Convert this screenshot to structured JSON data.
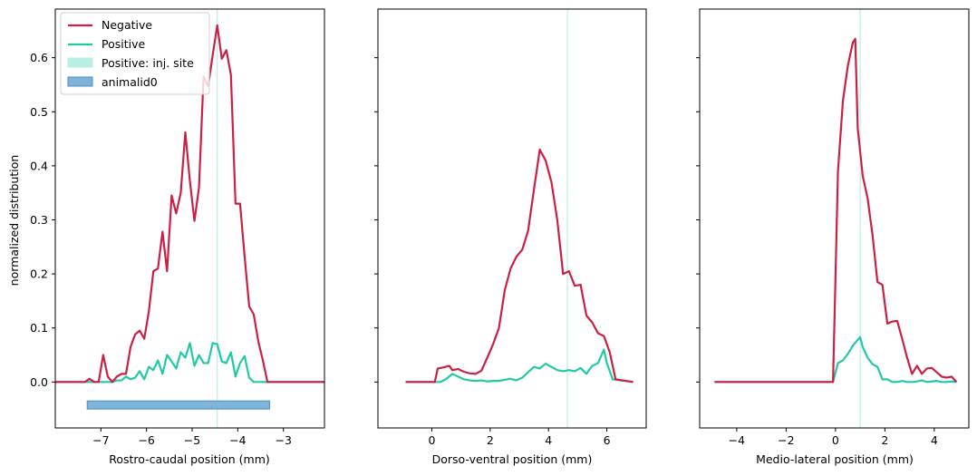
{
  "colors": {
    "negative": "#cc1f44",
    "positive": "#22c9a6",
    "inj_site_fill": "#b8efe2",
    "inj_site_line": "#b8efe2",
    "animal_fill": "#7fb3d7",
    "animal_edge": "#4d8fbf"
  },
  "legend": {
    "negative": "Negative",
    "positive": "Positive",
    "inj_site": "Positive: inj. site",
    "animal": "animalid0"
  },
  "chart_data": [
    {
      "type": "line",
      "xlabel": "Rostro-caudal position (mm)",
      "ylabel": "normalized distribution",
      "xlim": [
        -8.0,
        -2.1
      ],
      "ylim": [
        -0.085,
        0.69
      ],
      "xticks": [
        -7,
        -6,
        -5,
        -4,
        -3
      ],
      "yticks": [
        0.0,
        0.1,
        0.2,
        0.3,
        0.4,
        0.5,
        0.6
      ],
      "inj_site_x": -4.45,
      "animal_bar": {
        "x_start": -7.3,
        "x_end": -3.3,
        "y_low": -0.05,
        "y_high": -0.035
      },
      "series": [
        {
          "name": "Negative",
          "x": [
            -8.0,
            -7.35,
            -7.25,
            -7.15,
            -7.05,
            -6.95,
            -6.85,
            -6.75,
            -6.65,
            -6.55,
            -6.45,
            -6.35,
            -6.25,
            -6.15,
            -6.05,
            -5.95,
            -5.85,
            -5.75,
            -5.65,
            -5.55,
            -5.45,
            -5.35,
            -5.25,
            -5.15,
            -5.05,
            -4.95,
            -4.85,
            -4.75,
            -4.65,
            -4.55,
            -4.45,
            -4.35,
            -4.25,
            -4.15,
            -4.05,
            -3.95,
            -3.85,
            -3.75,
            -3.65,
            -3.55,
            -3.45,
            -3.35,
            -3.25,
            -2.1
          ],
          "y": [
            0.0,
            0.0,
            0.006,
            0.0,
            0.0,
            0.05,
            0.01,
            0.0,
            0.01,
            0.015,
            0.015,
            0.065,
            0.088,
            0.095,
            0.08,
            0.13,
            0.205,
            0.21,
            0.278,
            0.205,
            0.345,
            0.312,
            0.35,
            0.462,
            0.372,
            0.298,
            0.36,
            0.565,
            0.547,
            0.605,
            0.66,
            0.598,
            0.614,
            0.568,
            0.33,
            0.33,
            0.232,
            0.14,
            0.125,
            0.075,
            0.04,
            0.0,
            0.0,
            0.0
          ]
        },
        {
          "name": "Positive",
          "x": [
            -8.0,
            -6.85,
            -6.75,
            -6.65,
            -6.55,
            -6.45,
            -6.35,
            -6.25,
            -6.15,
            -6.05,
            -5.95,
            -5.85,
            -5.75,
            -5.65,
            -5.55,
            -5.45,
            -5.35,
            -5.25,
            -5.15,
            -5.05,
            -4.95,
            -4.85,
            -4.75,
            -4.65,
            -4.55,
            -4.45,
            -4.35,
            -4.25,
            -4.15,
            -4.05,
            -3.95,
            -3.85,
            -3.75,
            -3.65,
            -3.55,
            -2.1
          ],
          "y": [
            0.0,
            0.0,
            0.0,
            0.003,
            0.003,
            0.01,
            0.005,
            0.008,
            0.02,
            0.005,
            0.028,
            0.022,
            0.04,
            0.015,
            0.05,
            0.038,
            0.025,
            0.055,
            0.045,
            0.072,
            0.03,
            0.05,
            0.035,
            0.035,
            0.072,
            0.07,
            0.038,
            0.035,
            0.055,
            0.01,
            0.035,
            0.048,
            0.008,
            0.0,
            0.0,
            0.0
          ]
        }
      ]
    },
    {
      "type": "line",
      "xlabel": "Dorso-ventral position (mm)",
      "ylabel": "",
      "xlim": [
        -1.85,
        7.35
      ],
      "ylim": [
        -0.085,
        0.69
      ],
      "xticks": [
        0,
        2,
        4,
        6
      ],
      "yticks": [
        0.0,
        0.1,
        0.2,
        0.3,
        0.4,
        0.5,
        0.6
      ],
      "inj_site_x": 4.65,
      "series": [
        {
          "name": "Negative",
          "x": [
            -0.9,
            0.1,
            0.2,
            0.4,
            0.6,
            0.7,
            0.9,
            1.1,
            1.3,
            1.5,
            1.7,
            1.9,
            2.1,
            2.3,
            2.5,
            2.7,
            2.9,
            3.1,
            3.3,
            3.5,
            3.7,
            3.9,
            4.1,
            4.3,
            4.5,
            4.7,
            4.9,
            5.1,
            5.3,
            5.5,
            5.7,
            5.9,
            6.1,
            6.3,
            6.9
          ],
          "y": [
            0.0,
            0.0,
            0.025,
            0.027,
            0.03,
            0.022,
            0.024,
            0.019,
            0.016,
            0.015,
            0.021,
            0.045,
            0.07,
            0.1,
            0.17,
            0.21,
            0.232,
            0.245,
            0.28,
            0.356,
            0.43,
            0.41,
            0.37,
            0.3,
            0.2,
            0.205,
            0.178,
            0.18,
            0.123,
            0.11,
            0.09,
            0.085,
            0.055,
            0.005,
            0.0
          ]
        },
        {
          "name": "Positive",
          "x": [
            -0.9,
            0.3,
            0.5,
            0.7,
            0.9,
            1.1,
            1.3,
            1.5,
            1.7,
            1.9,
            2.1,
            2.3,
            2.5,
            2.7,
            2.9,
            3.1,
            3.3,
            3.5,
            3.7,
            3.9,
            4.1,
            4.3,
            4.5,
            4.7,
            4.9,
            5.1,
            5.3,
            5.5,
            5.7,
            5.9,
            6.0,
            6.2,
            6.9
          ],
          "y": [
            0.0,
            0.0,
            0.006,
            0.015,
            0.01,
            0.005,
            0.003,
            0.002,
            0.003,
            0.001,
            0.002,
            0.002,
            0.004,
            0.006,
            0.003,
            0.008,
            0.018,
            0.028,
            0.025,
            0.034,
            0.028,
            0.022,
            0.02,
            0.022,
            0.02,
            0.026,
            0.015,
            0.03,
            0.035,
            0.06,
            0.035,
            0.005,
            0.0
          ]
        }
      ]
    },
    {
      "type": "line",
      "xlabel": "Medio-lateral position (mm)",
      "ylabel": "",
      "xlim": [
        -5.5,
        5.4
      ],
      "ylim": [
        -0.085,
        0.69
      ],
      "xticks": [
        -4,
        -2,
        0,
        2,
        4
      ],
      "yticks": [
        0.0,
        0.1,
        0.2,
        0.3,
        0.4,
        0.5,
        0.6
      ],
      "inj_site_x": 1.0,
      "series": [
        {
          "name": "Negative",
          "x": [
            -4.9,
            -0.1,
            0.1,
            0.3,
            0.5,
            0.7,
            0.8,
            0.9,
            1.1,
            1.3,
            1.5,
            1.7,
            1.9,
            2.1,
            2.3,
            2.5,
            2.7,
            2.9,
            3.1,
            3.3,
            3.5,
            3.7,
            3.9,
            4.1,
            4.3,
            4.5,
            4.7,
            4.9
          ],
          "y": [
            0.0,
            0.0,
            0.39,
            0.52,
            0.585,
            0.628,
            0.635,
            0.47,
            0.382,
            0.34,
            0.272,
            0.185,
            0.18,
            0.108,
            0.112,
            0.113,
            0.08,
            0.045,
            0.015,
            0.03,
            0.015,
            0.025,
            0.026,
            0.018,
            0.01,
            0.008,
            0.01,
            0.0
          ]
        },
        {
          "name": "Positive",
          "x": [
            -4.9,
            -0.1,
            0.1,
            0.3,
            0.5,
            0.7,
            0.9,
            1.0,
            1.1,
            1.3,
            1.5,
            1.7,
            1.9,
            2.1,
            2.3,
            2.5,
            2.7,
            2.9,
            3.1,
            3.3,
            3.5,
            3.7,
            3.9,
            4.1,
            4.3,
            4.5,
            4.7,
            4.9
          ],
          "y": [
            0.0,
            0.0,
            0.035,
            0.04,
            0.052,
            0.067,
            0.078,
            0.083,
            0.065,
            0.045,
            0.033,
            0.028,
            0.005,
            0.005,
            0.0,
            0.0,
            0.002,
            0.0,
            0.0,
            0.001,
            0.003,
            0.0,
            0.001,
            0.002,
            0.0,
            0.0,
            0.001,
            0.0
          ]
        }
      ]
    }
  ]
}
